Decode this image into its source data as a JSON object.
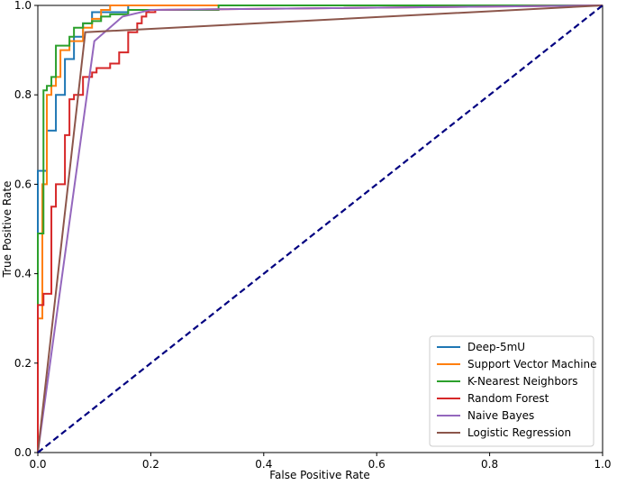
{
  "chart_data": {
    "type": "line",
    "title": "",
    "xlabel": "False Positive Rate",
    "ylabel": "True Positive Rate",
    "xlim": [
      0.0,
      1.0
    ],
    "ylim": [
      0.0,
      1.0
    ],
    "xticks": [
      "0.0",
      "0.2",
      "0.4",
      "0.6",
      "0.8",
      "1.0"
    ],
    "yticks": [
      "0.0",
      "0.2",
      "0.4",
      "0.6",
      "0.8",
      "1.0"
    ],
    "grid": false,
    "legend_position": "lower-right",
    "series": [
      {
        "name": "Deep-5mU",
        "color": "#1f77b4",
        "x": [
          0.0,
          0.0,
          0.016,
          0.016,
          0.032,
          0.032,
          0.048,
          0.048,
          0.064,
          0.064,
          0.08,
          0.08,
          0.096,
          0.096,
          0.16,
          0.16,
          0.32,
          0.32,
          1.0
        ],
        "y": [
          0.0,
          0.63,
          0.63,
          0.72,
          0.72,
          0.8,
          0.8,
          0.88,
          0.88,
          0.93,
          0.93,
          0.96,
          0.96,
          0.985,
          0.985,
          1.0,
          1.0,
          1.0,
          1.0
        ]
      },
      {
        "name": "Support Vector Machine",
        "color": "#ff7f0e",
        "x": [
          0.0,
          0.0,
          0.008,
          0.008,
          0.016,
          0.016,
          0.024,
          0.024,
          0.032,
          0.032,
          0.04,
          0.04,
          0.056,
          0.056,
          0.08,
          0.08,
          0.096,
          0.096,
          0.112,
          0.112,
          0.128,
          0.128,
          0.144,
          0.144,
          1.0
        ],
        "y": [
          0.0,
          0.3,
          0.3,
          0.6,
          0.6,
          0.8,
          0.8,
          0.82,
          0.82,
          0.84,
          0.84,
          0.9,
          0.9,
          0.92,
          0.92,
          0.95,
          0.95,
          0.97,
          0.97,
          0.99,
          0.99,
          1.0,
          1.0,
          1.0,
          1.0
        ]
      },
      {
        "name": "K-Nearest Neighbors",
        "color": "#2ca02c",
        "x": [
          0.0,
          0.0,
          0.01,
          0.01,
          0.016,
          0.016,
          0.024,
          0.024,
          0.032,
          0.032,
          0.04,
          0.04,
          0.056,
          0.056,
          0.064,
          0.064,
          0.08,
          0.08,
          0.096,
          0.096,
          0.112,
          0.112,
          0.128,
          0.128,
          0.16,
          0.16,
          0.32,
          0.32,
          1.0
        ],
        "y": [
          0.0,
          0.49,
          0.49,
          0.81,
          0.81,
          0.82,
          0.82,
          0.84,
          0.84,
          0.91,
          0.91,
          0.91,
          0.91,
          0.93,
          0.93,
          0.95,
          0.95,
          0.96,
          0.96,
          0.965,
          0.965,
          0.975,
          0.975,
          0.98,
          0.98,
          0.99,
          0.99,
          1.0,
          1.0
        ]
      },
      {
        "name": "Random Forest",
        "color": "#d62728",
        "x": [
          0.0,
          0.0,
          0.01,
          0.01,
          0.024,
          0.024,
          0.032,
          0.032,
          0.04,
          0.04,
          0.048,
          0.048,
          0.056,
          0.056,
          0.064,
          0.064,
          0.08,
          0.08,
          0.096,
          0.096,
          0.104,
          0.104,
          0.128,
          0.128,
          0.144,
          0.144,
          0.16,
          0.16,
          0.176,
          0.176,
          0.184,
          0.184,
          0.192,
          0.192,
          0.208,
          0.208,
          1.0
        ],
        "y": [
          0.0,
          0.33,
          0.33,
          0.355,
          0.355,
          0.55,
          0.55,
          0.6,
          0.6,
          0.6,
          0.6,
          0.71,
          0.71,
          0.79,
          0.79,
          0.8,
          0.8,
          0.84,
          0.84,
          0.85,
          0.85,
          0.86,
          0.86,
          0.87,
          0.87,
          0.895,
          0.895,
          0.94,
          0.94,
          0.96,
          0.96,
          0.975,
          0.975,
          0.985,
          0.985,
          0.99,
          1.0
        ]
      },
      {
        "name": "Naive Bayes",
        "color": "#9467bd",
        "x": [
          0.0,
          0.0,
          0.1,
          0.15,
          0.2,
          1.0
        ],
        "y": [
          0.0,
          0.0,
          0.92,
          0.975,
          0.99,
          1.0
        ]
      },
      {
        "name": "Logistic Regression",
        "color": "#8c564b",
        "x": [
          0.0,
          0.084,
          1.0
        ],
        "y": [
          0.0,
          0.94,
          1.0
        ]
      },
      {
        "name": "",
        "color": "#000080",
        "style": "dashed",
        "x": [
          0.0,
          1.0
        ],
        "y": [
          0.0,
          1.0
        ]
      }
    ]
  }
}
